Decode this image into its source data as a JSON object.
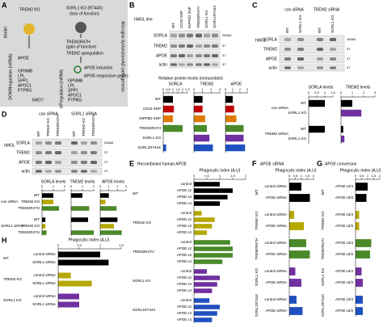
{
  "panel_letters": [
    "A",
    "B",
    "C",
    "D",
    "E",
    "F",
    "G",
    "H"
  ],
  "A": {
    "side_label": "Model",
    "trem2_ko": "TREM2 KO",
    "sorl1_ko": "SORL1 KO (R744X)",
    "loss": "(loss of function)",
    "trem2_r47h": "TREM2R47H",
    "gain": "(gain of function)",
    "trem2_up": "TREM2 upregulation",
    "apoe_induction": "APOE induction",
    "apoe_genes": "APOE-responsive genes",
    "down": "DOWNregulation (mRNA)",
    "down_genes": [
      "APOE",
      "GPNMB",
      "LPL",
      "SPP1",
      "APOC1",
      "PTPRG"
    ],
    "nhd": "NHD?",
    "up": "UPregulation (mRNA)",
    "up_genes": [
      "GPNMB",
      "LPL",
      "SPP1",
      "APOC1",
      "PTPRG"
    ],
    "outcome": "Microglial dysfunction/AD pathogenesis"
  },
  "blots": [
    {
      "hmgl": "hMGL line",
      "lanes": [
        "WT",
        "CD33 SNP",
        "INPP5D SNP",
        "TREM2R47H",
        "SORL1 KO",
        "SORL1R744X"
      ],
      "rows": [
        "SORLA",
        "TREM2",
        "APOE",
        "actin"
      ],
      "kd": [
        "250kD",
        "37",
        "37",
        "37"
      ]
    },
    {
      "hmgl": "hMGL",
      "conditions": [
        "con siRNA",
        "TREM2 siRNA"
      ],
      "lanes": [
        "WT",
        "SORL1 KO",
        "WT",
        "SORL1 KO"
      ],
      "rows": [
        "SORLA",
        "TREM2",
        "APOE",
        "actin"
      ],
      "kd": [
        "250kD",
        "37",
        "37",
        "37"
      ]
    },
    {
      "hmgl": "hMGL",
      "conditions": [
        "con siRNA",
        "SORL1 siRNA"
      ],
      "lanes": [
        "WT",
        "TREM2 KO",
        "TREM2R47H",
        "WT",
        "TREM2 KO",
        "TREM2R47H"
      ],
      "rows": [
        "SORLA",
        "TREM2",
        "APOE",
        "actin"
      ],
      "kd": [
        "250kD",
        "37",
        "37",
        "37"
      ]
    }
  ],
  "charts": [
    {
      "axis_title": "Relative protein levels (immunoblot)",
      "title": "SORLA",
      "xlim": [
        0,
        2.5
      ],
      "xticks": [
        0,
        0.5,
        1,
        1.5,
        2,
        2.5
      ],
      "groups": [
        {
          "categories": [
            "WT",
            "CD33 SNP",
            "INPP5D SNP",
            "TREM2R47H",
            "SORL1 KO",
            "SORL1R744X"
          ],
          "values": [
            1,
            1.1,
            1,
            2,
            0,
            0.3
          ],
          "colors": [
            "#000000",
            "#c00000",
            "#e07b00",
            "#4a8a2a",
            "#7030a0",
            "#2050c0"
          ]
        }
      ]
    },
    {
      "title": "TREM2",
      "xlim": [
        0,
        3
      ],
      "xticks": [
        0,
        1,
        2,
        3
      ],
      "groups": [
        {
          "values": [
            1,
            1,
            1.3,
            1.5,
            1.8,
            2.2
          ],
          "colors": [
            "#000000",
            "#c00000",
            "#e07b00",
            "#4a8a2a",
            "#7030a0",
            "#2050c0"
          ]
        }
      ]
    },
    {
      "title": "APOE",
      "xlim": [
        0,
        3
      ],
      "xticks": [
        0,
        1,
        2,
        3
      ],
      "groups": [
        {
          "values": [
            1,
            1.2,
            1.5,
            2.5,
            2.5,
            2.7
          ],
          "colors": [
            "#000000",
            "#c00000",
            "#e07b00",
            "#4a8a2a",
            "#7030a0",
            "#2050c0"
          ]
        }
      ]
    },
    {
      "title": "SORLA levels",
      "xlim": [
        0,
        1.5
      ],
      "xticks": [
        0,
        0.5,
        1,
        1.5
      ],
      "groups": [
        {
          "label": "con siRNA",
          "categories": [
            "WT",
            "SORL1 KO"
          ],
          "values": [
            1,
            0
          ],
          "colors": [
            "#000000",
            "#7030a0"
          ]
        },
        {
          "label": "TREM2 siRNA",
          "categories": [
            "WT",
            "SORL1 KO"
          ],
          "values": [
            1,
            0
          ],
          "colors": [
            "#000000",
            "#7030a0"
          ]
        }
      ]
    },
    {
      "title": "TREM2 levels",
      "xlim": [
        0,
        3
      ],
      "xticks": [
        0,
        1,
        2,
        3
      ],
      "groups": [
        {
          "values": [
            1,
            1.8
          ],
          "colors": [
            "#000000",
            "#7030a0"
          ]
        },
        {
          "values": [
            0.2,
            0.3
          ],
          "colors": [
            "#000000",
            "#7030a0"
          ]
        }
      ]
    },
    {
      "title": "SORLA levels",
      "xlim": [
        0,
        2
      ],
      "xticks": [
        0,
        1,
        2
      ],
      "groups": [
        {
          "label": "con siRNA",
          "categories": [
            "WT",
            "TREM2 KO",
            "TREM2R47H"
          ],
          "values": [
            1,
            1,
            1.5
          ],
          "colors": [
            "#000000",
            "#b5a800",
            "#4a8a2a"
          ]
        },
        {
          "label": "SORL1 siRNA",
          "categories": [
            "WT",
            "TREM2 KO",
            "TREM2R47H"
          ],
          "values": [
            0.3,
            0.3,
            0.4
          ],
          "colors": [
            "#000000",
            "#b5a800",
            "#4a8a2a"
          ]
        }
      ]
    },
    {
      "title": "TREM2 levels",
      "xlim": [
        0,
        2
      ],
      "xticks": [
        0,
        1,
        2
      ],
      "groups": [
        {
          "values": [
            1,
            0,
            1.6
          ],
          "colors": [
            "#000000",
            "#b5a800",
            "#4a8a2a"
          ]
        },
        {
          "values": [
            1.5,
            0,
            2
          ],
          "colors": [
            "#000000",
            "#b5a800",
            "#4a8a2a"
          ]
        }
      ]
    },
    {
      "title": "APOE levels",
      "xlim": [
        0,
        3
      ],
      "xticks": [
        0,
        1,
        2,
        3
      ],
      "groups": [
        {
          "values": [
            1,
            0.6,
            1.9
          ],
          "colors": [
            "#000000",
            "#b5a800",
            "#4a8a2a"
          ]
        },
        {
          "values": [
            2,
            1.6,
            2.5
          ],
          "colors": [
            "#000000",
            "#b5a800",
            "#4a8a2a"
          ]
        }
      ]
    },
    {
      "header": "Recombinant human APOE",
      "axis_title": "Phagocytic index (A.U)",
      "xlim": [
        0,
        2
      ],
      "xticks": [
        0,
        0.5,
        1,
        1.5,
        2
      ],
      "groups": [
        {
          "label": "WT",
          "color": "#000000",
          "categories": [
            "control",
            "APOE ε2",
            "APOE ε3",
            "APOE ε4"
          ],
          "values": [
            1,
            1.5,
            1.3,
            1
          ]
        },
        {
          "label": "TREM2 KO",
          "color": "#b5a800",
          "categories": [
            "control",
            "APOE ε2",
            "APOE ε3",
            "APOE ε4"
          ],
          "values": [
            0.3,
            0.8,
            0.7,
            0.5
          ]
        },
        {
          "label": "TREM2R47H",
          "color": "#4a8a2a",
          "categories": [
            "control",
            "APOE ε2",
            "APOE ε3",
            "APOE ε4"
          ],
          "values": [
            1.4,
            1.5,
            1.5,
            1.1
          ]
        },
        {
          "label": "SORL1 KO",
          "color": "#7030a0",
          "categories": [
            "control",
            "APOE ε2",
            "APOE ε3",
            "APOE ε4"
          ],
          "values": [
            0.5,
            1,
            0.9,
            0.7
          ]
        },
        {
          "label": "SORL1R744X",
          "color": "#2050c0",
          "categories": [
            "control",
            "APOE ε2",
            "APOE ε3",
            "APOE ε4"
          ],
          "values": [
            0.6,
            1,
            0.9,
            0.7
          ]
        }
      ]
    },
    {
      "header": "APOE siRNA",
      "axis_title": "Phagocytic index (A.U)",
      "xlim": [
        0,
        2
      ],
      "xticks": [
        0,
        0.5,
        1,
        1.5,
        2
      ],
      "groups": [
        {
          "label": "WT",
          "color": "#000000",
          "categories": [
            "control siRNA",
            "APOE siRNA"
          ],
          "values": [
            1,
            1.7
          ]
        },
        {
          "label": "TREM2 KO",
          "color": "#b5a800",
          "categories": [
            "control siRNA",
            "APOE siRNA"
          ],
          "values": [
            0.4,
            1.2
          ]
        },
        {
          "label": "TREM2R47H",
          "color": "#4a8a2a",
          "categories": [
            "control siRNA",
            "APOE siRNA"
          ],
          "values": [
            1.4,
            1.7
          ]
        },
        {
          "label": "SORL1 KO",
          "color": "#7030a0",
          "categories": [
            "control siRNA",
            "APOE siRNA"
          ],
          "values": [
            0.5,
            1
          ]
        },
        {
          "label": "SORL1R744X",
          "color": "#2050c0",
          "categories": [
            "control siRNA",
            "APOE siRNA"
          ],
          "values": [
            0.6,
            1.1
          ]
        }
      ]
    },
    {
      "header": "APOE conversion",
      "axis_title": "Phagocytic index (A.U)",
      "xlim": [
        0,
        2
      ],
      "xticks": [
        0,
        0.5,
        1,
        1.5,
        2
      ],
      "groups": [
        {
          "label": "WT",
          "color": "#000000",
          "categories": [
            "APOE ε3/4",
            "APOE ε3/3"
          ],
          "values": [
            1,
            0.9
          ]
        },
        {
          "label": "TREM2 KO",
          "color": "#b5a800",
          "categories": [
            "APOE ε3/4",
            "APOE ε3/3"
          ],
          "values": [
            0.3,
            0.3
          ]
        },
        {
          "label": "TREM2R47H",
          "color": "#4a8a2a",
          "categories": [
            "APOE ε3/4",
            "APOE ε3/3"
          ],
          "values": [
            1.3,
            1.2
          ]
        },
        {
          "label": "SORL1 KO",
          "color": "#7030a0",
          "categories": [
            "APOE ε3/4",
            "APOE ε3/3"
          ],
          "values": [
            0.5,
            0.6
          ]
        },
        {
          "label": "SORL1R744X",
          "color": "#2050c0",
          "categories": [
            "APOE ε3/4",
            "APOE ε3/3"
          ],
          "values": [
            0.6,
            0.6
          ]
        }
      ]
    },
    {
      "axis_title": "Phagocytic index (A.U)",
      "xlim": [
        0,
        1.5
      ],
      "xticks": [
        0,
        0.5,
        1,
        1.5
      ],
      "groups": [
        {
          "label": "WT",
          "color": "#000000",
          "categories": [
            "control siRNA",
            "SORL1 siRNA"
          ],
          "values": [
            1,
            1.2
          ]
        },
        {
          "label": "TREM2 KO",
          "color": "#b5a800",
          "categories": [
            "control siRNA",
            "SORL1 siRNA"
          ],
          "values": [
            0.3,
            0.8
          ]
        },
        {
          "label": "SORL1 KO",
          "color": "#7030a0",
          "categories": [
            "control siRNA",
            "SORL1 siRNA"
          ],
          "values": [
            0.5,
            0.5
          ]
        }
      ]
    }
  ]
}
